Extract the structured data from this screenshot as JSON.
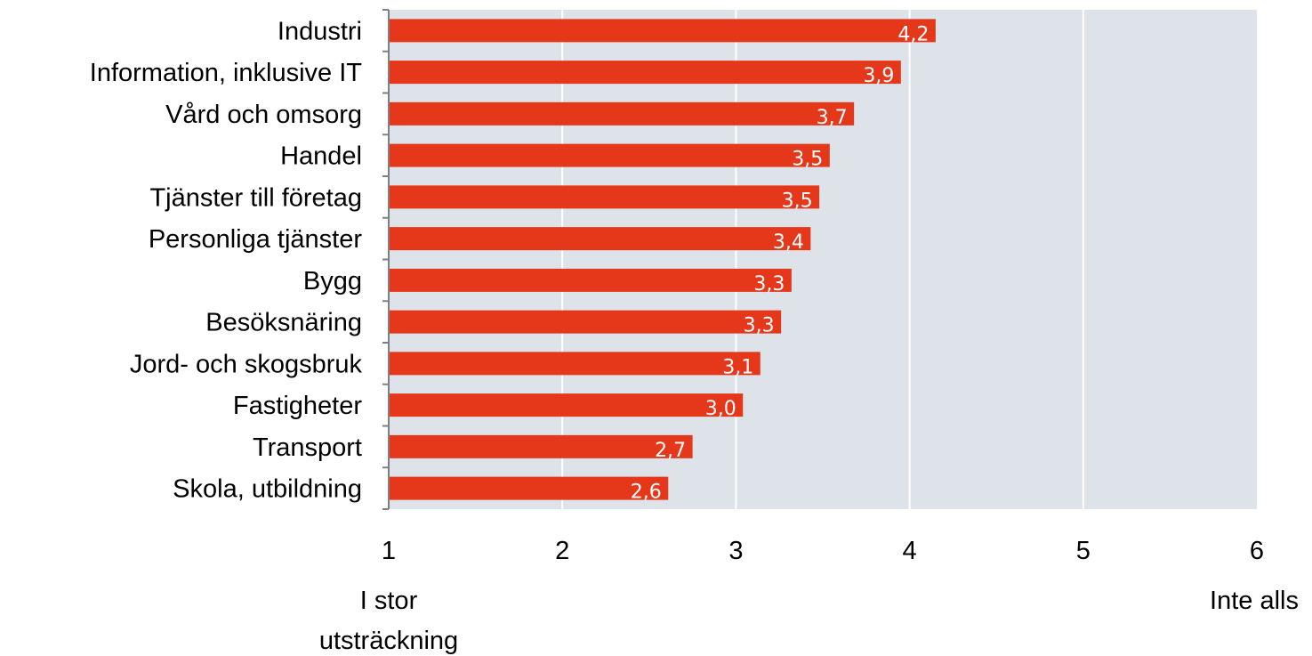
{
  "chart_data": {
    "type": "bar",
    "orientation": "horizontal",
    "categories": [
      "Industri",
      "Information, inklusive IT",
      "Vård och omsorg",
      "Handel",
      "Tjänster till företag",
      "Personliga tjänster",
      "Bygg",
      "Besöksnäring",
      "Jord- och skogsbruk",
      "Fastigheter",
      "Transport",
      "Skola, utbildning"
    ],
    "values": [
      4.15,
      3.95,
      3.68,
      3.54,
      3.48,
      3.43,
      3.32,
      3.26,
      3.14,
      3.04,
      2.75,
      2.61
    ],
    "value_labels": [
      "4,2",
      "3,9",
      "3,7",
      "3,5",
      "3,5",
      "3,4",
      "3,3",
      "3,3",
      "3,1",
      "3,0",
      "2,7",
      "2,6"
    ],
    "xlim": [
      1,
      6
    ],
    "x_ticks": [
      "1",
      "2",
      "3",
      "4",
      "5",
      "6"
    ],
    "x_end_labels": {
      "low": [
        "I stor",
        "utsträckning"
      ],
      "high": [
        "Inte alls"
      ]
    },
    "grid": true,
    "colors": {
      "bar": "#E5381B",
      "plot_background": "#DEE3EA",
      "gridline": "#FFFFFF",
      "axis": "#808080"
    }
  }
}
